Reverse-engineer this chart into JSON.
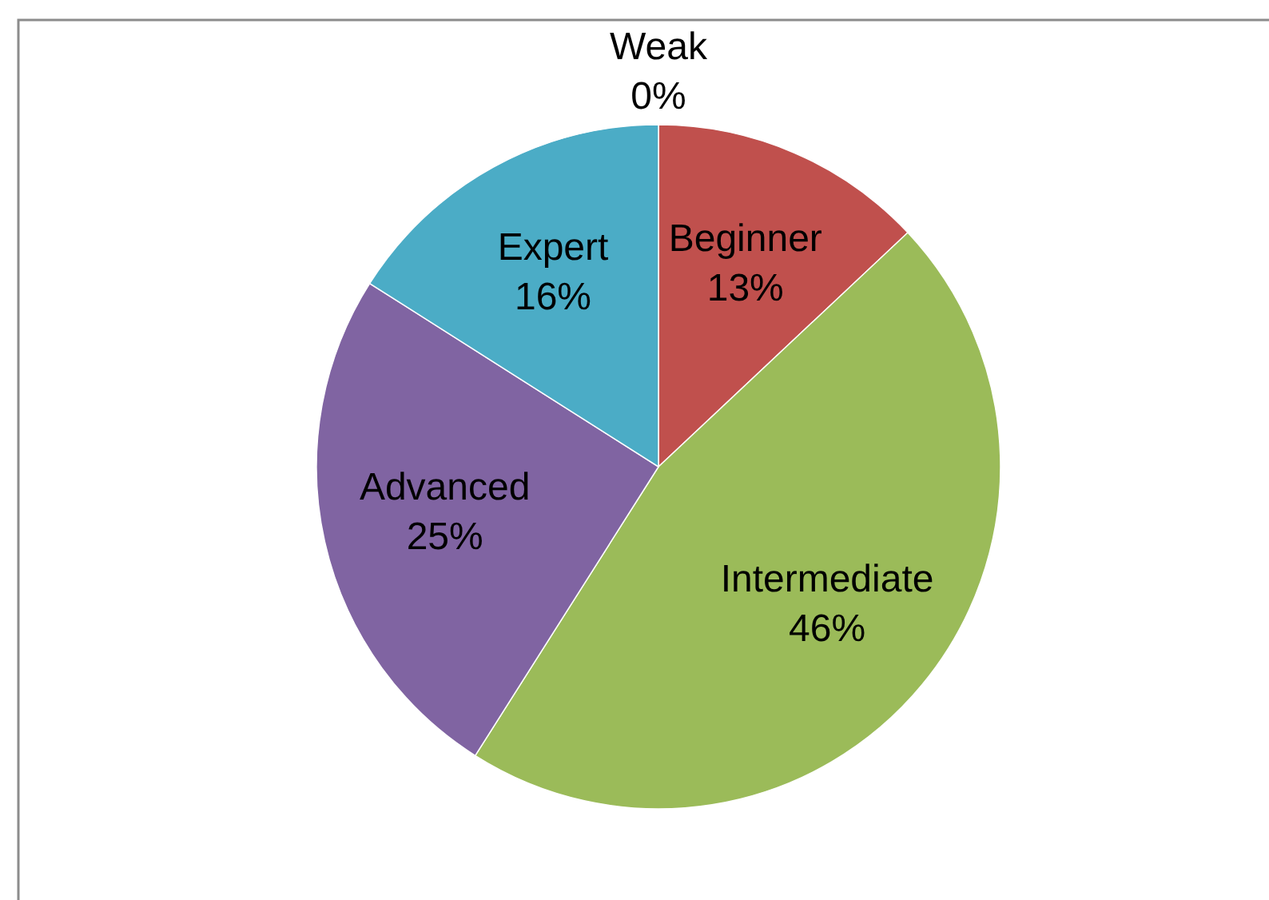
{
  "chart_data": {
    "type": "pie",
    "categories": [
      "Weak",
      "Beginner",
      "Intermediate",
      "Advanced",
      "Expert"
    ],
    "values": [
      0,
      13,
      46,
      25,
      16
    ],
    "value_labels": [
      "0%",
      "13%",
      "46%",
      "25%",
      "16%"
    ],
    "colors": [
      null,
      "#c0504d",
      "#9bbb59",
      "#8064a2",
      "#4bacc6"
    ]
  }
}
